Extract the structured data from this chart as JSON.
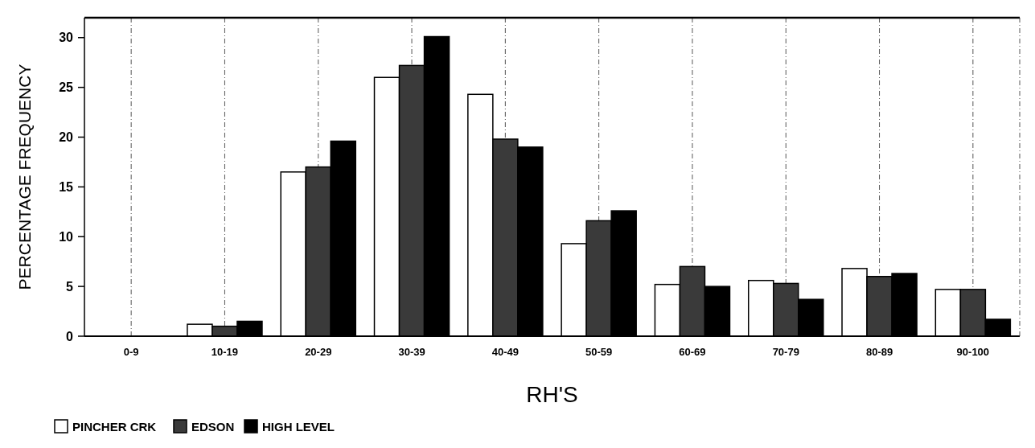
{
  "chart_data": {
    "type": "bar",
    "xlabel": "RH'S",
    "ylabel": "PERCENTAGE FREQUENCY",
    "categories": [
      "0-9",
      "10-19",
      "20-29",
      "30-39",
      "40-49",
      "50-59",
      "60-69",
      "70-79",
      "80-89",
      "90-100"
    ],
    "series": [
      {
        "name": "PINCHER CRK",
        "color": "#ffffff",
        "values": [
          0,
          1.2,
          16.5,
          26,
          24.3,
          9.3,
          5.2,
          5.6,
          6.8,
          4.7
        ]
      },
      {
        "name": "EDSON",
        "color": "#3a3a3a",
        "values": [
          0,
          1.0,
          17,
          27.2,
          19.8,
          11.6,
          7,
          5.3,
          6,
          4.7
        ]
      },
      {
        "name": "HIGH LEVEL",
        "color": "#000000",
        "values": [
          0,
          1.5,
          19.6,
          30.1,
          19,
          12.6,
          5,
          3.7,
          6.3,
          1.7
        ]
      }
    ],
    "ylim": [
      0,
      32
    ],
    "yticks": [
      0,
      5,
      10,
      15,
      20,
      25,
      30
    ],
    "grid": "x",
    "legend": "bottom left"
  }
}
